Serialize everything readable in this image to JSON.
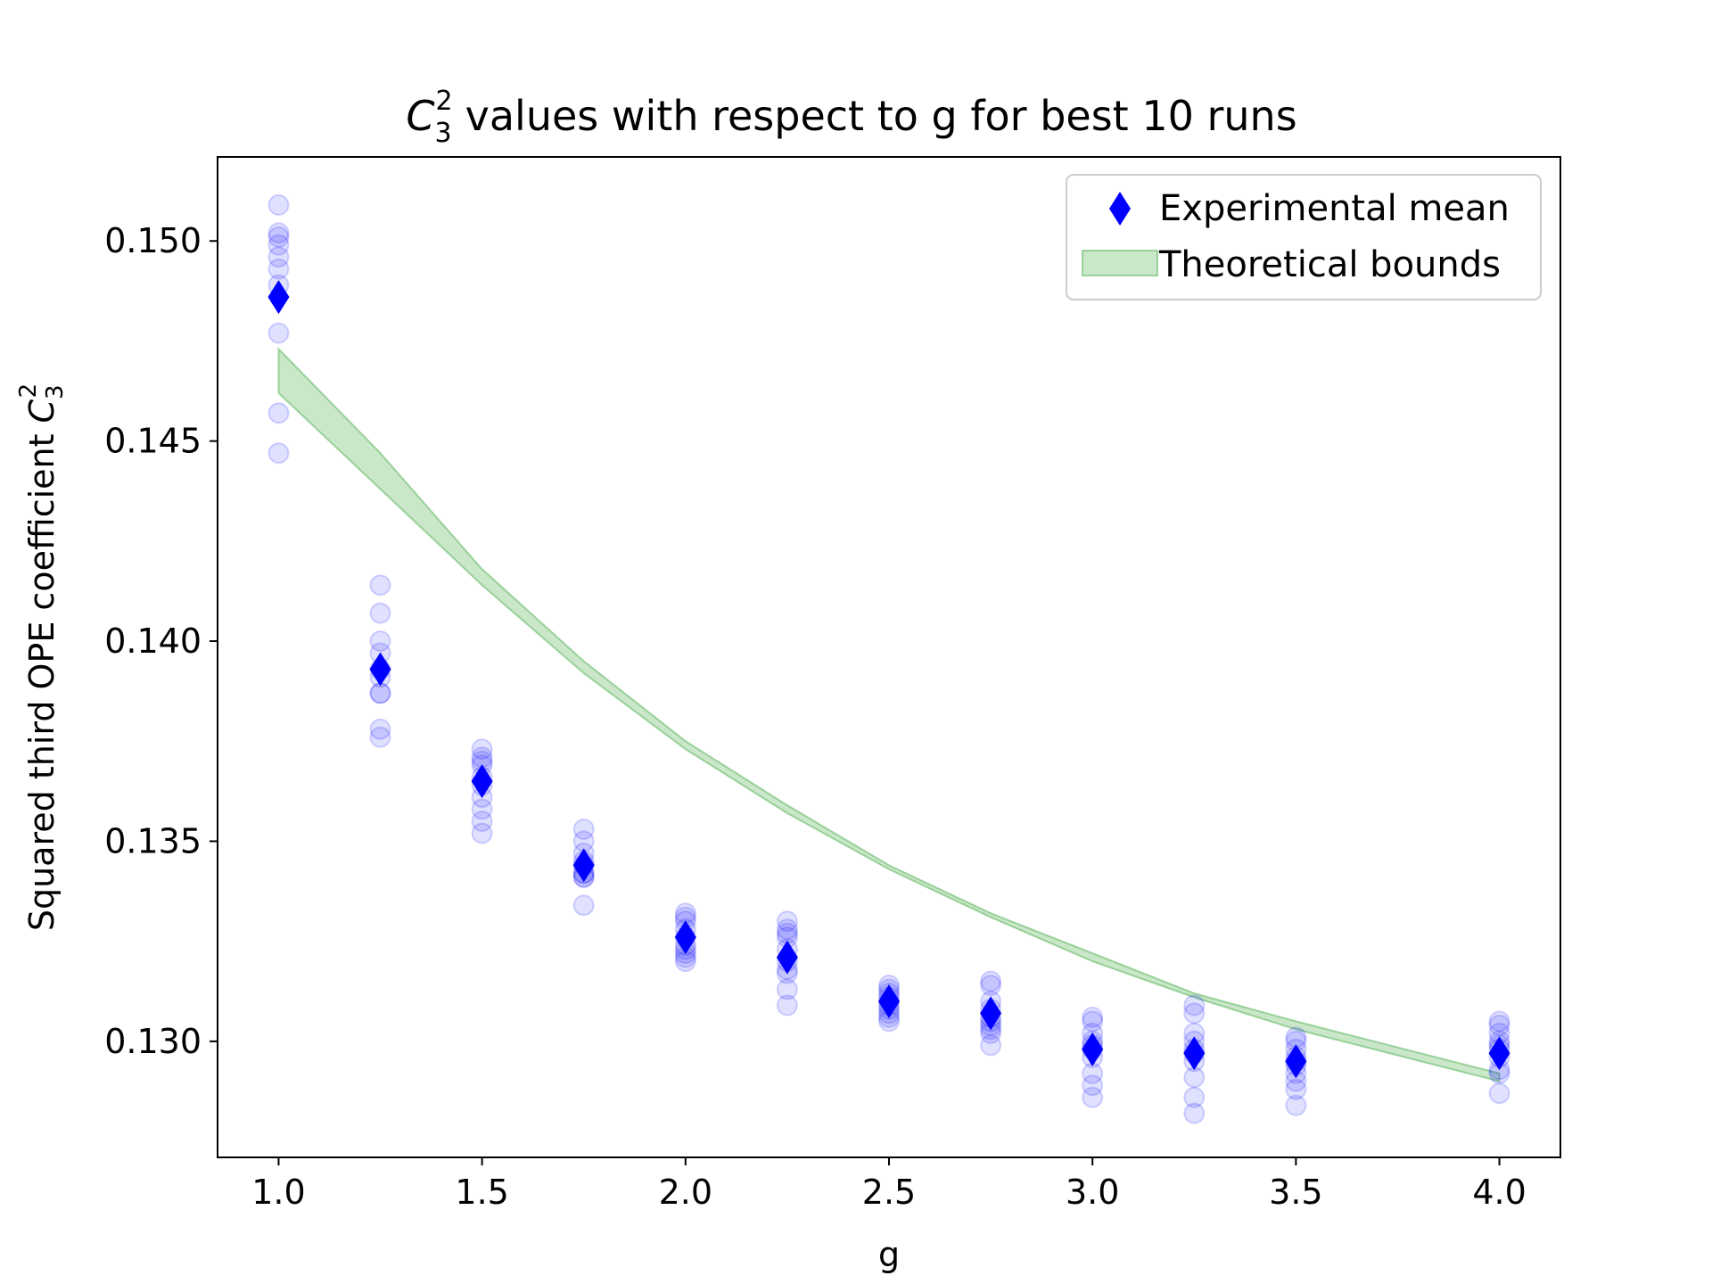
{
  "chart_data": {
    "type": "scatter",
    "title": "values with respect to g for best 10 runs",
    "title_symbol": {
      "base": "C",
      "sub": "3",
      "sup": "2"
    },
    "xlabel": "g",
    "ylabel": "Squared third OPE coefficient",
    "ylabel_symbol": {
      "base": "C",
      "sub": "3",
      "sup": "2"
    },
    "xlim": [
      0.85,
      4.15
    ],
    "ylim": [
      0.1271,
      0.1521
    ],
    "xticks": [
      1.0,
      1.5,
      2.0,
      2.5,
      3.0,
      3.5,
      4.0
    ],
    "xtick_labels": [
      "1.0",
      "1.5",
      "2.0",
      "2.5",
      "3.0",
      "3.5",
      "4.0"
    ],
    "yticks": [
      0.13,
      0.135,
      0.14,
      0.145,
      0.15
    ],
    "ytick_labels": [
      "0.130",
      "0.135",
      "0.140",
      "0.145",
      "0.150"
    ],
    "grid": false,
    "legend_position": "top-right",
    "legend": [
      {
        "label": "Experimental mean",
        "marker": "diamond",
        "color": "#0000ff"
      },
      {
        "label": "Theoretical bounds",
        "marker": "band",
        "color": "#2ca02c"
      }
    ],
    "run_color": "#0000ff",
    "run_opacity": 0.12,
    "mean_color": "#0000ff",
    "band_color": "#2ca02c",
    "runs": [
      {
        "g": 1.0,
        "values": [
          0.1509,
          0.1502,
          0.1499,
          0.1496,
          0.1493,
          0.1489,
          0.1477,
          0.1457,
          0.1447,
          0.1501
        ]
      },
      {
        "g": 1.25,
        "values": [
          0.1414,
          0.1407,
          0.14,
          0.1397,
          0.1393,
          0.1391,
          0.1387,
          0.1387,
          0.1378,
          0.1376
        ]
      },
      {
        "g": 1.5,
        "values": [
          0.1373,
          0.1371,
          0.1369,
          0.1366,
          0.1364,
          0.1361,
          0.1358,
          0.1355,
          0.1352,
          0.137
        ]
      },
      {
        "g": 1.75,
        "values": [
          0.1353,
          0.135,
          0.1347,
          0.1344,
          0.1342,
          0.1341,
          0.1341,
          0.1334,
          0.1345,
          0.1342
        ]
      },
      {
        "g": 2.0,
        "values": [
          0.1332,
          0.133,
          0.1328,
          0.1326,
          0.1324,
          0.1322,
          0.1321,
          0.132,
          0.1331,
          0.1323
        ]
      },
      {
        "g": 2.25,
        "values": [
          0.133,
          0.1328,
          0.1326,
          0.1323,
          0.132,
          0.1317,
          0.1313,
          0.1309,
          0.1327,
          0.1318
        ]
      },
      {
        "g": 2.5,
        "values": [
          0.1314,
          0.1313,
          0.1311,
          0.131,
          0.1308,
          0.1307,
          0.1306,
          0.1305,
          0.1312,
          0.1309
        ]
      },
      {
        "g": 2.75,
        "values": [
          0.1315,
          0.1314,
          0.131,
          0.1306,
          0.1304,
          0.1303,
          0.1302,
          0.1299,
          0.1308,
          0.1305
        ]
      },
      {
        "g": 3.0,
        "values": [
          0.1306,
          0.1305,
          0.13,
          0.1298,
          0.1296,
          0.1292,
          0.1289,
          0.1286,
          0.1302,
          0.1299
        ]
      },
      {
        "g": 3.25,
        "values": [
          0.1309,
          0.1307,
          0.1302,
          0.13,
          0.1298,
          0.1295,
          0.1291,
          0.1286,
          0.1282,
          0.1297
        ]
      },
      {
        "g": 3.5,
        "values": [
          0.1301,
          0.13,
          0.1298,
          0.1296,
          0.1294,
          0.1292,
          0.129,
          0.1288,
          0.1284,
          0.1295
        ]
      },
      {
        "g": 4.0,
        "values": [
          0.1305,
          0.1304,
          0.13,
          0.1298,
          0.1296,
          0.1293,
          0.1292,
          0.1287,
          0.1302,
          0.1299
        ]
      }
    ],
    "mean": {
      "x": [
        1.0,
        1.25,
        1.5,
        1.75,
        2.0,
        2.25,
        2.5,
        2.75,
        3.0,
        3.25,
        3.5,
        4.0
      ],
      "y": [
        0.1486,
        0.1393,
        0.1365,
        0.1344,
        0.1326,
        0.1321,
        0.131,
        0.1307,
        0.1298,
        0.1297,
        0.1295,
        0.1297
      ]
    },
    "bounds": {
      "x": [
        1.0,
        1.25,
        1.5,
        1.75,
        2.0,
        2.25,
        2.5,
        2.75,
        3.0,
        3.25,
        3.5,
        4.0
      ],
      "lower": [
        0.1462,
        0.1438,
        0.1414,
        0.1392,
        0.1373,
        0.1357,
        0.1343,
        0.1331,
        0.132,
        0.1311,
        0.1303,
        0.129
      ],
      "upper": [
        0.1473,
        0.1447,
        0.1418,
        0.1395,
        0.1375,
        0.1359,
        0.1344,
        0.1332,
        0.1322,
        0.1312,
        0.1305,
        0.1292
      ]
    }
  }
}
